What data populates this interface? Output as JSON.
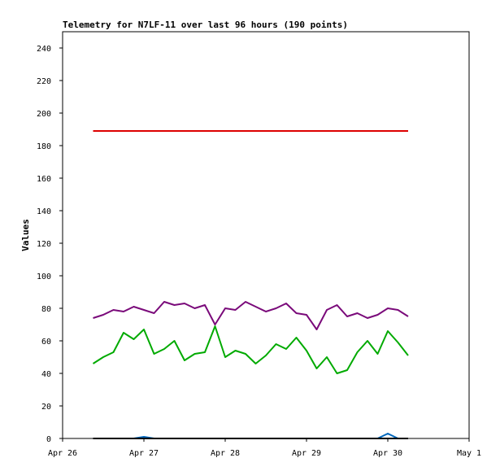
{
  "chart_data": {
    "type": "line",
    "title": "Telemetry for N7LF-11 over last 96 hours (190 points)",
    "xlabel": "",
    "ylabel": "Values",
    "x_tick_labels": [
      "Apr 26",
      "Apr 27",
      "Apr 28",
      "Apr 29",
      "Apr 30",
      "May 1"
    ],
    "xlim": [
      "Apr 26",
      "May 1"
    ],
    "ylim": [
      0,
      250
    ],
    "y_ticks": [
      0,
      20,
      40,
      60,
      80,
      100,
      120,
      140,
      160,
      180,
      200,
      220,
      240
    ],
    "grid": false,
    "legend": "none",
    "x": [
      "Apr 26 09:00",
      "Apr 26 12:00",
      "Apr 26 15:00",
      "Apr 26 18:00",
      "Apr 26 21:00",
      "Apr 27 00:00",
      "Apr 27 03:00",
      "Apr 27 06:00",
      "Apr 27 09:00",
      "Apr 27 12:00",
      "Apr 27 15:00",
      "Apr 27 18:00",
      "Apr 27 21:00",
      "Apr 28 00:00",
      "Apr 28 03:00",
      "Apr 28 06:00",
      "Apr 28 09:00",
      "Apr 28 12:00",
      "Apr 28 15:00",
      "Apr 28 18:00",
      "Apr 28 21:00",
      "Apr 29 00:00",
      "Apr 29 03:00",
      "Apr 29 06:00",
      "Apr 29 09:00",
      "Apr 29 12:00",
      "Apr 29 15:00",
      "Apr 29 18:00",
      "Apr 29 21:00",
      "Apr 30 00:00",
      "Apr 30 03:00",
      "Apr 30 06:00"
    ],
    "series": [
      {
        "color": "#dd0000",
        "values": [
          189,
          189,
          189,
          189,
          189,
          189,
          189,
          189,
          189,
          189,
          189,
          189,
          189,
          189,
          189,
          189,
          189,
          189,
          189,
          189,
          189,
          189,
          189,
          189,
          189,
          189,
          189,
          189,
          189,
          189,
          189,
          189
        ]
      },
      {
        "color": "#7a0a7a",
        "values": [
          74,
          76,
          79,
          78,
          81,
          79,
          77,
          84,
          82,
          83,
          80,
          82,
          70,
          80,
          79,
          84,
          81,
          78,
          80,
          83,
          77,
          76,
          67,
          79,
          82,
          75,
          77,
          74,
          76,
          80,
          79,
          75
        ]
      },
      {
        "color": "#00aa00",
        "values": [
          46,
          50,
          53,
          65,
          61,
          67,
          52,
          55,
          60,
          48,
          52,
          53,
          69,
          50,
          54,
          52,
          46,
          51,
          58,
          55,
          62,
          54,
          43,
          50,
          40,
          42,
          53,
          60,
          52,
          66,
          59,
          51
        ]
      },
      {
        "color": "#0066bb",
        "values": [
          0,
          0,
          0,
          0,
          0,
          1,
          0,
          0,
          0,
          0,
          0,
          0,
          0,
          0,
          0,
          0,
          0,
          0,
          0,
          0,
          0,
          0,
          0,
          0,
          0,
          0,
          0,
          0,
          0,
          3,
          0,
          0
        ]
      },
      {
        "color": "#000000",
        "values": [
          0,
          0,
          0,
          0,
          0,
          0,
          0,
          0,
          0,
          0,
          0,
          0,
          0,
          0,
          0,
          0,
          0,
          0,
          0,
          0,
          0,
          0,
          0,
          0,
          0,
          0,
          0,
          0,
          0,
          0,
          0,
          0
        ]
      }
    ]
  }
}
